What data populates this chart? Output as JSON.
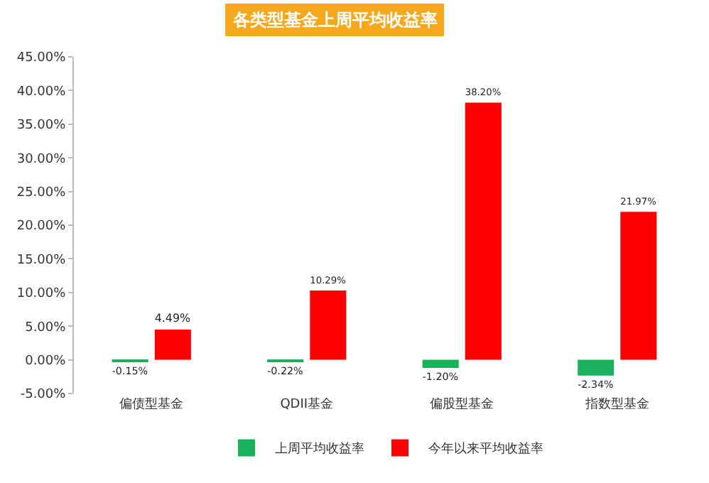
{
  "chart_data": {
    "type": "bar",
    "title": "各类型基金上周平均收益率",
    "categories": [
      "偏债型基金",
      "QDII基金",
      "偏股型基金",
      "指数型基金"
    ],
    "series": [
      {
        "name": "上周平均收益率",
        "color": "#19b25a",
        "values": [
          -0.15,
          -0.22,
          -1.2,
          -2.34
        ],
        "value_labels": [
          "-0.15%",
          "-0.22%",
          "-1.20%",
          "-2.34%"
        ]
      },
      {
        "name": "今年以来平均收益率",
        "color": "#ff0000",
        "values": [
          4.49,
          10.29,
          38.2,
          21.97
        ],
        "value_labels": [
          "4.49%",
          "10.29%",
          "38.20%",
          "21.97%"
        ]
      }
    ],
    "ylim": [
      -5,
      45
    ],
    "yticks": [
      {
        "value": -5,
        "label": "-5.00%"
      },
      {
        "value": 0,
        "label": "0.00%"
      },
      {
        "value": 5,
        "label": "5.00%"
      },
      {
        "value": 10,
        "label": "10.00%"
      },
      {
        "value": 15,
        "label": "15.00%"
      },
      {
        "value": 20,
        "label": "20.00%"
      },
      {
        "value": 25,
        "label": "25.00%"
      },
      {
        "value": 30,
        "label": "30.00%"
      },
      {
        "value": 35,
        "label": "35.00%"
      },
      {
        "value": 40,
        "label": "40.00%"
      },
      {
        "value": 45,
        "label": "45.00%"
      }
    ],
    "grid": false,
    "legend": "bottom"
  }
}
